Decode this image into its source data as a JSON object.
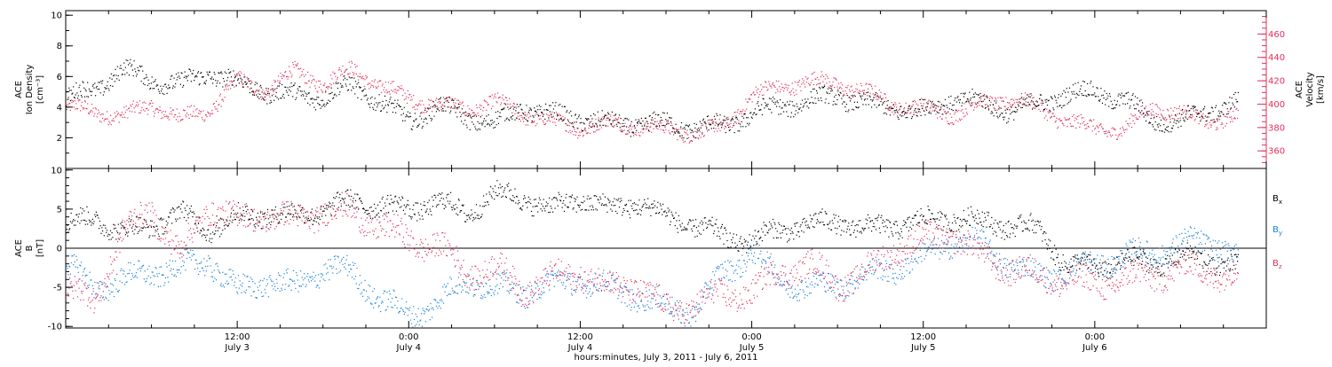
{
  "colors": {
    "axis": "#000000",
    "density": "#000000",
    "velocity": "#e0305a",
    "bx": "#000000",
    "by": "#1a7fd6",
    "bz": "#e0305a"
  },
  "chart_data": [
    {
      "type": "scatter",
      "panel": "top",
      "ylabel_left": [
        "ACE",
        "Ion Density",
        "[cm⁻³]"
      ],
      "ylabel_right": [
        "ACE",
        "Velocity",
        "[km/s]"
      ],
      "yticks_left": [
        "2",
        "4",
        "6",
        "8",
        "10"
      ],
      "yticks_right": [
        "360",
        "380",
        "400",
        "420",
        "440",
        "460"
      ],
      "ylim_left": [
        0,
        10.3
      ],
      "ylim_right": [
        345,
        480
      ],
      "x_hours": [
        0,
        84
      ],
      "series": [
        {
          "key": "density",
          "axis": "left",
          "x": [
            0,
            2,
            4,
            6,
            8,
            10,
            12,
            14,
            16,
            18,
            20,
            22,
            24,
            26,
            28,
            30,
            32,
            34,
            36,
            38,
            40,
            42,
            44,
            46,
            48,
            50,
            52,
            54,
            56,
            58,
            60,
            62,
            64,
            66,
            68,
            70,
            72,
            74,
            76,
            78,
            80,
            82
          ],
          "y": [
            4.6,
            5.2,
            6.5,
            5.8,
            5.5,
            6.3,
            5.6,
            5.1,
            4.8,
            4.7,
            5.4,
            4.4,
            3.1,
            4.1,
            3.4,
            3.0,
            4.0,
            3.5,
            3.3,
            2.9,
            3.0,
            2.9,
            2.7,
            2.8,
            3.6,
            4.1,
            4.4,
            4.8,
            4.2,
            4.0,
            3.7,
            4.6,
            4.3,
            3.8,
            4.2,
            4.9,
            5.0,
            4.5,
            3.2,
            3.1,
            3.8,
            4.3
          ],
          "spread": 0.55
        },
        {
          "key": "velocity",
          "axis": "right",
          "x": [
            0,
            2,
            4,
            6,
            8,
            10,
            12,
            14,
            16,
            18,
            20,
            22,
            24,
            26,
            28,
            30,
            32,
            34,
            36,
            38,
            40,
            42,
            44,
            46,
            48,
            50,
            52,
            54,
            56,
            58,
            60,
            62,
            64,
            66,
            68,
            70,
            72,
            74,
            76,
            78,
            80,
            82
          ],
          "y": [
            398,
            394,
            390,
            400,
            388,
            395,
            420,
            412,
            428,
            418,
            430,
            416,
            405,
            400,
            396,
            402,
            392,
            385,
            380,
            384,
            382,
            378,
            376,
            380,
            408,
            415,
            420,
            418,
            410,
            400,
            396,
            392,
            400,
            405,
            398,
            385,
            380,
            378,
            398,
            392,
            386,
            390
          ],
          "spread": 6
        }
      ]
    },
    {
      "type": "scatter",
      "panel": "bottom",
      "ylabel_left": [
        "ACE",
        "B",
        "[nT]"
      ],
      "yticks_left": [
        "-10",
        "-5",
        "0",
        "5",
        "10"
      ],
      "ylim": [
        -10.2,
        10.2
      ],
      "x_hours": [
        0,
        84
      ],
      "legend": [
        "B",
        "B",
        "B"
      ],
      "legend_subscripts": [
        "x",
        "y",
        "z"
      ],
      "legend_placement": "right",
      "series": [
        {
          "key": "bx",
          "x": [
            0,
            2,
            4,
            6,
            8,
            10,
            12,
            14,
            16,
            18,
            20,
            22,
            24,
            26,
            28,
            30,
            32,
            34,
            36,
            38,
            40,
            42,
            44,
            46,
            48,
            50,
            52,
            54,
            56,
            58,
            60,
            62,
            64,
            66,
            68,
            70,
            72,
            74,
            76,
            78,
            80,
            82
          ],
          "y": [
            3.0,
            4.0,
            2.0,
            3.0,
            4.5,
            2.5,
            4.0,
            4.5,
            4.2,
            5.0,
            6.0,
            5.5,
            5.0,
            6.0,
            4.5,
            7.0,
            6.5,
            5.0,
            6.5,
            5.0,
            6.0,
            4.0,
            3.0,
            1.5,
            1.0,
            2.5,
            3.0,
            3.5,
            2.5,
            3.0,
            3.5,
            4.0,
            3.5,
            3.0,
            2.5,
            -2.0,
            -2.5,
            -1.5,
            -2.0,
            -1.0,
            -1.5,
            -2.0
          ],
          "spread": 1.2
        },
        {
          "key": "by",
          "x": [
            0,
            2,
            4,
            6,
            8,
            10,
            12,
            14,
            16,
            18,
            20,
            22,
            24,
            26,
            28,
            30,
            32,
            34,
            36,
            38,
            40,
            42,
            44,
            46,
            48,
            50,
            52,
            54,
            56,
            58,
            60,
            62,
            64,
            66,
            68,
            70,
            72,
            74,
            76,
            78,
            80,
            82
          ],
          "y": [
            -2.0,
            -5.0,
            -4.0,
            -3.0,
            -2.5,
            -1.5,
            -5.5,
            -4.0,
            -5.0,
            -2.5,
            -3.0,
            -6.5,
            -8.5,
            -7.0,
            -4.0,
            -5.0,
            -5.5,
            -4.5,
            -4.0,
            -5.0,
            -6.0,
            -7.5,
            -8.0,
            -3.0,
            -0.5,
            -4.0,
            -5.0,
            -4.5,
            -3.5,
            -2.5,
            -1.0,
            1.0,
            0.5,
            -2.0,
            -3.5,
            -3.0,
            -2.0,
            -1.0,
            -0.5,
            0.5,
            1.0,
            -1.0
          ],
          "spread": 1.4
        },
        {
          "key": "bz",
          "x": [
            0,
            2,
            4,
            6,
            8,
            10,
            12,
            14,
            16,
            18,
            20,
            22,
            24,
            26,
            28,
            30,
            32,
            34,
            36,
            38,
            40,
            42,
            44,
            46,
            48,
            50,
            52,
            54,
            56,
            58,
            60,
            62,
            64,
            66,
            68,
            70,
            72,
            74,
            76,
            78,
            80,
            82
          ],
          "y": [
            -5.5,
            -6.5,
            2.0,
            5.0,
            -1.0,
            5.5,
            3.5,
            4.5,
            3.5,
            5.0,
            4.5,
            3.0,
            1.0,
            0.5,
            -3.0,
            -2.5,
            -5.0,
            -4.0,
            -3.0,
            -5.0,
            -4.5,
            -8.0,
            -7.0,
            -6.0,
            -5.5,
            -3.0,
            -2.0,
            -4.5,
            -3.0,
            0.0,
            1.0,
            2.0,
            -1.0,
            -2.5,
            -3.5,
            -4.0,
            -4.5,
            -4.0,
            -3.5,
            -2.5,
            -3.0,
            -3.5
          ],
          "spread": 1.6
        }
      ]
    }
  ],
  "x_axis": {
    "ticks": [
      {
        "hour": 12,
        "time": "12:00",
        "date": "July 3"
      },
      {
        "hour": 24,
        "time": "0:00",
        "date": "July 4"
      },
      {
        "hour": 36,
        "time": "12:00",
        "date": "July 4"
      },
      {
        "hour": 48,
        "time": "0:00",
        "date": "July 5"
      },
      {
        "hour": 60,
        "time": "12:00",
        "date": "July 5"
      },
      {
        "hour": 72,
        "time": "0:00",
        "date": "July 6"
      }
    ],
    "label": "hours:minutes, July  3, 2011 - July  6, 2011"
  }
}
